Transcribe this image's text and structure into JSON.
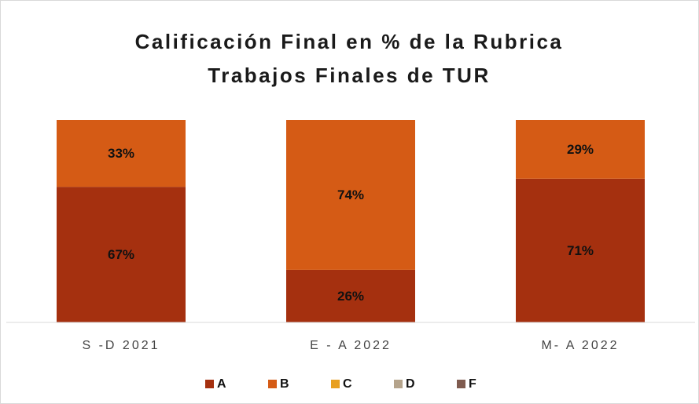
{
  "chart_data": {
    "type": "stacked_bar_100",
    "title": [
      "Calificación Final en % de la Rubrica",
      "Trabajos Finales de TUR"
    ],
    "categories": [
      "S -D 2021",
      "E - A 2022",
      "M- A 2022"
    ],
    "series": [
      {
        "name": "A",
        "color": "#a5300f",
        "values": [
          67,
          26,
          71
        ],
        "value_labels": [
          "67%",
          "26%",
          "71%"
        ]
      },
      {
        "name": "B",
        "color": "#d55b15",
        "values": [
          33,
          74,
          29
        ],
        "value_labels": [
          "33%",
          "74%",
          "29%"
        ]
      },
      {
        "name": "C",
        "color": "#e8a020",
        "values": [
          0,
          0,
          0
        ]
      },
      {
        "name": "D",
        "color": "#b5a48c",
        "values": [
          0,
          0,
          0
        ]
      },
      {
        "name": "F",
        "color": "#7f5b4f",
        "values": [
          0,
          0,
          0
        ]
      }
    ],
    "ylim": [
      0,
      100
    ],
    "legend": "bottom"
  }
}
